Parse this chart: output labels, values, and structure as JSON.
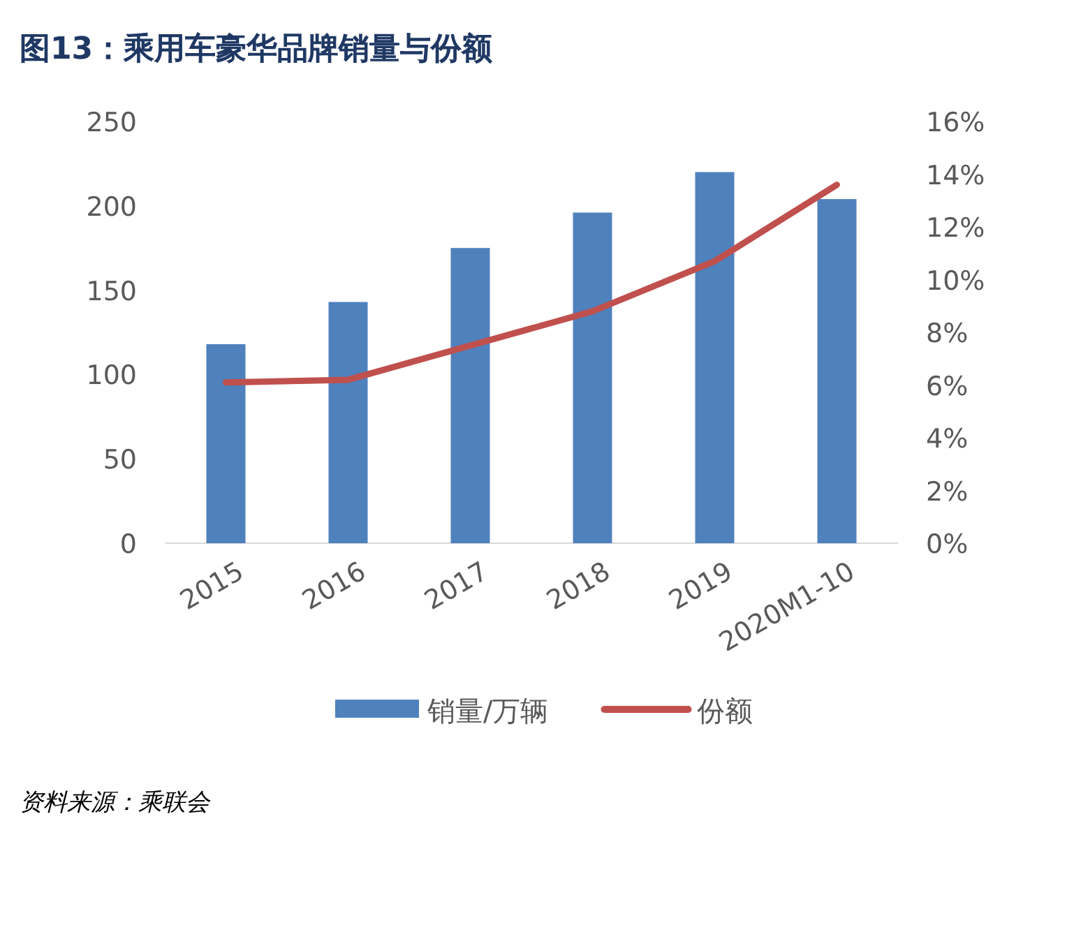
{
  "chart_data": {
    "type": "bar",
    "title": "图13：乘用车豪华品牌销量与份额",
    "categories": [
      "2015",
      "2016",
      "2017",
      "2018",
      "2019",
      "2020M1-10"
    ],
    "series": [
      {
        "name": "销量/万辆",
        "color": "#4f81bd",
        "values": [
          118,
          143,
          175,
          196,
          220,
          204
        ]
      },
      {
        "name": "份额",
        "type": "line",
        "axis": "y2",
        "color": "#c0504d",
        "values": [
          6.1,
          6.2,
          7.5,
          8.8,
          10.7,
          13.6
        ]
      }
    ],
    "ylim": [
      0,
      250
    ],
    "yticks": [
      0,
      50,
      100,
      150,
      200,
      250
    ],
    "y2lim": [
      0,
      16
    ],
    "y2ticks": [
      {
        "value": 0,
        "label": "0%"
      },
      {
        "value": 2,
        "label": "2%"
      },
      {
        "value": 4,
        "label": "4%"
      },
      {
        "value": 6,
        "label": "6%"
      },
      {
        "value": 8,
        "label": "8%"
      },
      {
        "value": 10,
        "label": "10%"
      },
      {
        "value": 12,
        "label": "12%"
      },
      {
        "value": 14,
        "label": "14%"
      },
      {
        "value": 16,
        "label": "16%"
      }
    ],
    "legend": "bottom",
    "annotations": [
      "资料来源：乘联会"
    ]
  }
}
